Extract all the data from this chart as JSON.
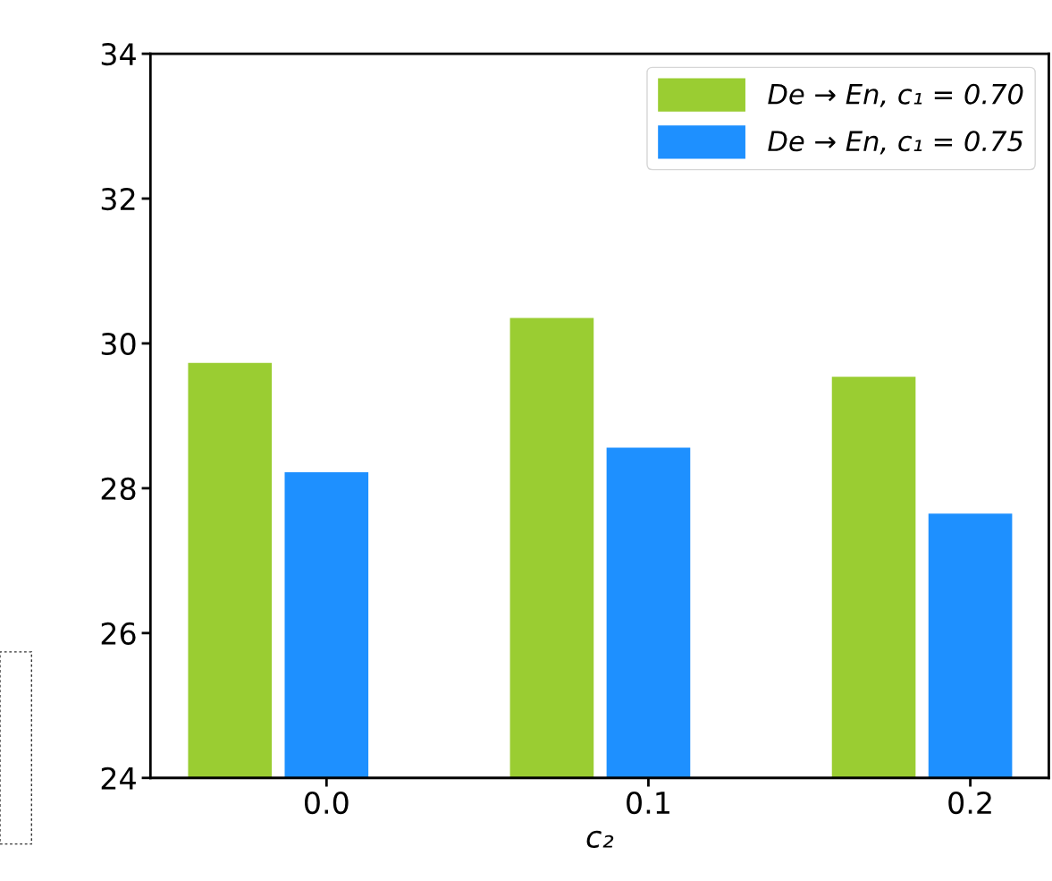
{
  "chart_data": {
    "type": "bar",
    "xlabel": "c₂",
    "categories": [
      "0.0",
      "0.1",
      "0.2"
    ],
    "series": [
      {
        "name": "De → En, c₁ = 0.70",
        "color": "#9acd32",
        "values": [
          29.73,
          30.35,
          29.54
        ]
      },
      {
        "name": "De → En, c₁ = 0.75",
        "color": "#1e90ff",
        "values": [
          28.22,
          28.56,
          27.65
        ]
      }
    ],
    "ylim": [
      24,
      34
    ],
    "yticks": [
      24,
      26,
      28,
      30,
      32,
      34
    ],
    "grid": false,
    "legend": "top right"
  }
}
